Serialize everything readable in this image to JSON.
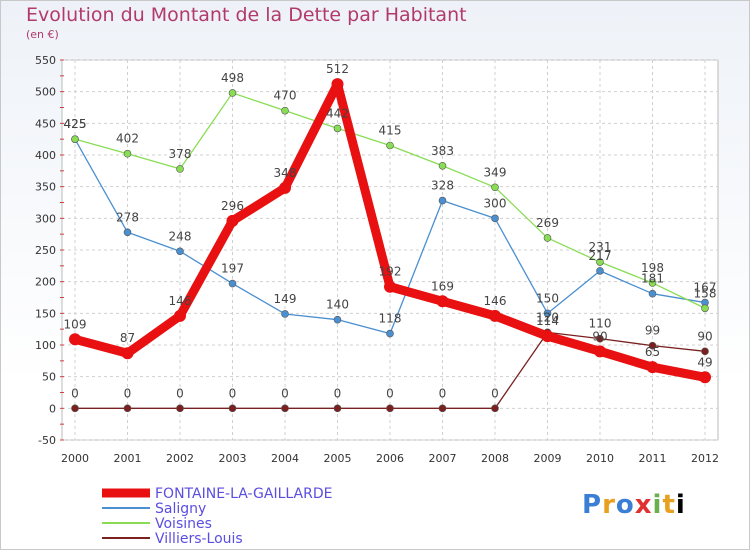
{
  "chart_data": {
    "type": "line",
    "title": "Evolution du Montant de la Dette par Habitant",
    "subtitle": "(en €)",
    "x": [
      "2000",
      "2001",
      "2002",
      "2003",
      "2004",
      "2005",
      "2006",
      "2007",
      "2008",
      "2009",
      "2010",
      "2011",
      "2012"
    ],
    "ylim": [
      -50,
      550
    ],
    "yticks": [
      -50,
      0,
      50,
      100,
      150,
      200,
      250,
      300,
      350,
      400,
      450,
      500,
      550
    ],
    "grid": true,
    "legend_position": "bottom-left",
    "series": [
      {
        "name": "FONTAINE-LA-GAILLARDE",
        "color": "#e81010",
        "values": [
          109,
          87,
          146,
          296,
          348,
          512,
          192,
          169,
          146,
          114,
          90,
          65,
          49
        ]
      },
      {
        "name": "Saligny",
        "color": "#4a8fd0",
        "values": [
          425,
          278,
          248,
          197,
          149,
          140,
          118,
          328,
          300,
          150,
          217,
          181,
          167
        ]
      },
      {
        "name": "Voisines",
        "color": "#88dd55",
        "values": [
          425,
          402,
          378,
          498,
          470,
          442,
          415,
          383,
          349,
          269,
          231,
          198,
          158
        ]
      },
      {
        "name": "Villiers-Louis",
        "color": "#7a2020",
        "values": [
          0,
          0,
          0,
          0,
          0,
          0,
          0,
          0,
          0,
          120,
          110,
          99,
          90
        ]
      }
    ]
  },
  "logo": {
    "letters": [
      "P",
      "r",
      "o",
      "x",
      "i",
      "t",
      "i"
    ]
  }
}
